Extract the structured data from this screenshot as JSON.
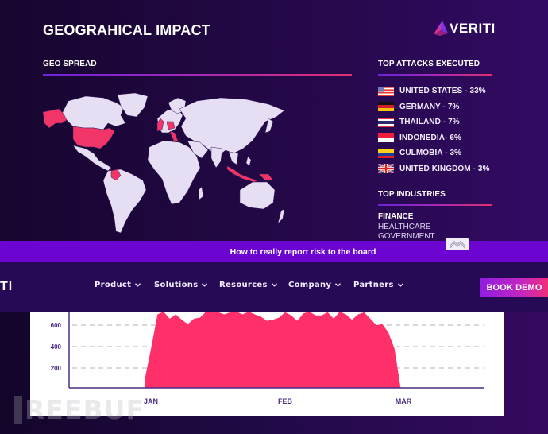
{
  "slide": {
    "title": "GEOGRAHICAL IMPACT",
    "logo_text": "VERITI",
    "geo_spread_label": "GEO SPREAD",
    "map": {
      "highlighted_regions": [
        "Alaska",
        "United States",
        "United Kingdom",
        "Germany",
        "Italy",
        "Colombia",
        "Indonesia",
        "Papua New Guinea"
      ],
      "land_color": "#e6def3",
      "highlight_color": "#f23569"
    },
    "top_attacks_label": "TOP ATTACKS EXECUTED",
    "attacks": [
      {
        "flag": "us-flag-icon",
        "label": "UNITED STATES - 33%"
      },
      {
        "flag": "germany-flag-icon",
        "label": "GERMANY - 7%"
      },
      {
        "flag": "thailand-flag-icon",
        "label": "THAILAND - 7%"
      },
      {
        "flag": "indonesia-flag-icon",
        "label": "INDONEDIA- 6%"
      },
      {
        "flag": "colombia-flag-icon",
        "label": "CULMOBIA - 3%"
      },
      {
        "flag": "uk-flag-icon",
        "label": "UNITED KINGDOM - 3%"
      }
    ],
    "top_industries_label": "TOP INDUSTRIES",
    "industries": [
      "FINANCE",
      "HEALTHCARE",
      "GOVERNMENT"
    ]
  },
  "promo": {
    "text": "How to really report risk to the board",
    "collapse_icon": "double-chevron-up-icon"
  },
  "navbar": {
    "logo_fragment": "TI",
    "items": [
      {
        "label": "Product"
      },
      {
        "label": "Solutions"
      },
      {
        "label": "Resources"
      },
      {
        "label": "Company"
      },
      {
        "label": "Partners"
      }
    ],
    "cta_label": "BOOK DEMO"
  },
  "colors": {
    "accent_pink": "#ff3069",
    "accent_purple": "#6c05d2",
    "nav_bg": "#270a56"
  },
  "chart_data": {
    "type": "area",
    "title": "",
    "xlabel": "",
    "ylabel": "",
    "x_tick_labels": [
      "JAN",
      "FEB",
      "MAR"
    ],
    "y_tick_labels": [
      "200",
      "400",
      "600"
    ],
    "ylim": [
      0,
      760
    ],
    "grid": "dashed horizontal at 200, 400, 600",
    "series": [
      {
        "name": "attacks",
        "color": "#ff3069",
        "values": [
          0,
          0,
          0,
          0,
          0,
          0,
          0,
          0,
          0,
          0,
          0,
          0,
          0,
          0,
          0,
          0,
          0,
          0,
          0,
          0,
          0,
          0,
          0,
          0,
          0,
          0,
          0,
          0,
          0,
          0,
          0,
          0,
          120,
          400,
          700,
          730,
          660,
          700,
          650,
          610,
          660,
          670,
          730,
          760,
          720,
          700,
          720,
          730,
          700,
          760,
          700,
          680,
          640,
          650,
          670,
          720,
          690,
          640,
          710,
          740,
          690,
          690,
          720,
          660,
          740,
          700,
          650,
          700,
          720,
          660,
          600,
          610,
          530,
          380,
          0,
          0,
          0,
          0,
          0,
          0,
          0,
          0
        ]
      }
    ],
    "notes": "Daily values, near zero before mid-January, fluctuating ~580-760 through Feb, dropping to 0 in early March"
  },
  "watermark": {
    "text": "REEBUF"
  }
}
